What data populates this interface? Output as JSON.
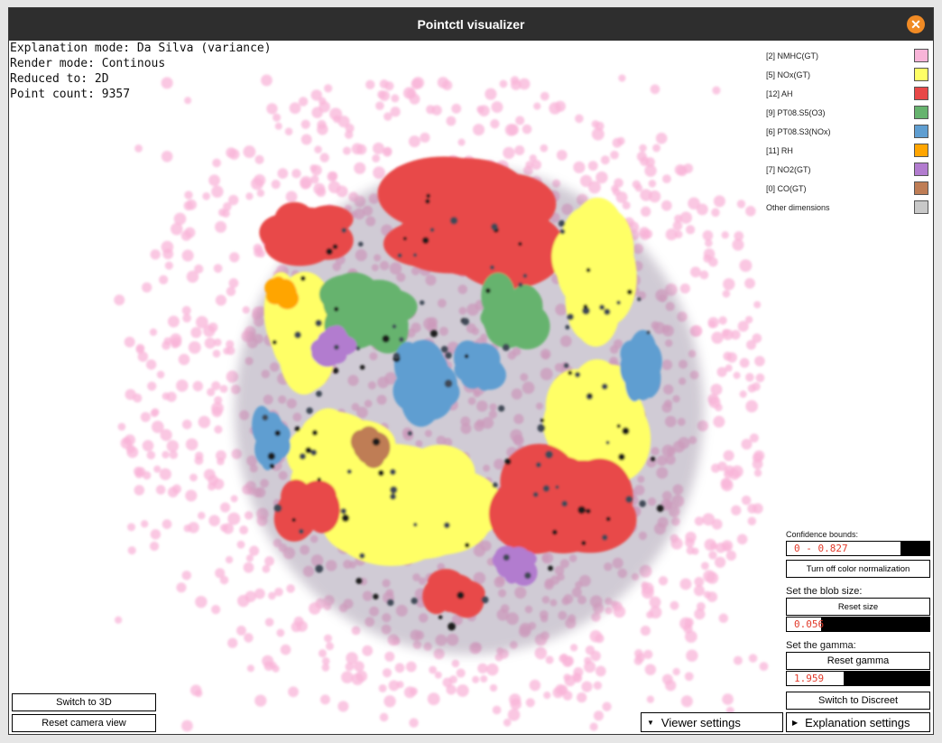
{
  "window": {
    "title": "Pointctl visualizer",
    "close_icon": "close-icon"
  },
  "info": {
    "explanation_mode": "Explanation mode: Da Silva (variance)",
    "render_mode": "Render mode: Continous",
    "reduced_to": "Reduced to: 2D",
    "point_count": "Point count: 9357"
  },
  "legend": [
    {
      "label": "[2] NMHC(GT)",
      "color": "#f8b4d8"
    },
    {
      "label": "[5] NOx(GT)",
      "color": "#ffff66"
    },
    {
      "label": "[12] AH",
      "color": "#e84848"
    },
    {
      "label": "[9] PT08.S5(O3)",
      "color": "#66b36e"
    },
    {
      "label": "[6] PT08.S3(NOx)",
      "color": "#5f9ed1"
    },
    {
      "label": "[11] RH",
      "color": "#ffa500"
    },
    {
      "label": "[7] NO2(GT)",
      "color": "#b27ccf"
    },
    {
      "label": "[0] CO(GT)",
      "color": "#bf7d55"
    },
    {
      "label": "Other dimensions",
      "color": "#c8c8c8"
    }
  ],
  "controls": {
    "confidence_label": "Confidence bounds:",
    "confidence_value": "0 - 0.827",
    "confidence_fill": 0.8,
    "color_norm_button": "Turn off color normalization",
    "blob_label": "Set the blob size:",
    "reset_size_button": "Reset size",
    "blob_value": "0.056",
    "blob_fill": 0.24,
    "gamma_label": "Set the gamma:",
    "reset_gamma_button": "Reset gamma",
    "gamma_value": "1.959",
    "gamma_fill": 0.4,
    "discreet_button": "Switch to Discreet"
  },
  "bottom": {
    "switch_3d": "Switch to 3D",
    "reset_camera": "Reset camera view",
    "viewer_settings": "Viewer settings",
    "explanation_settings": "Explanation settings"
  }
}
